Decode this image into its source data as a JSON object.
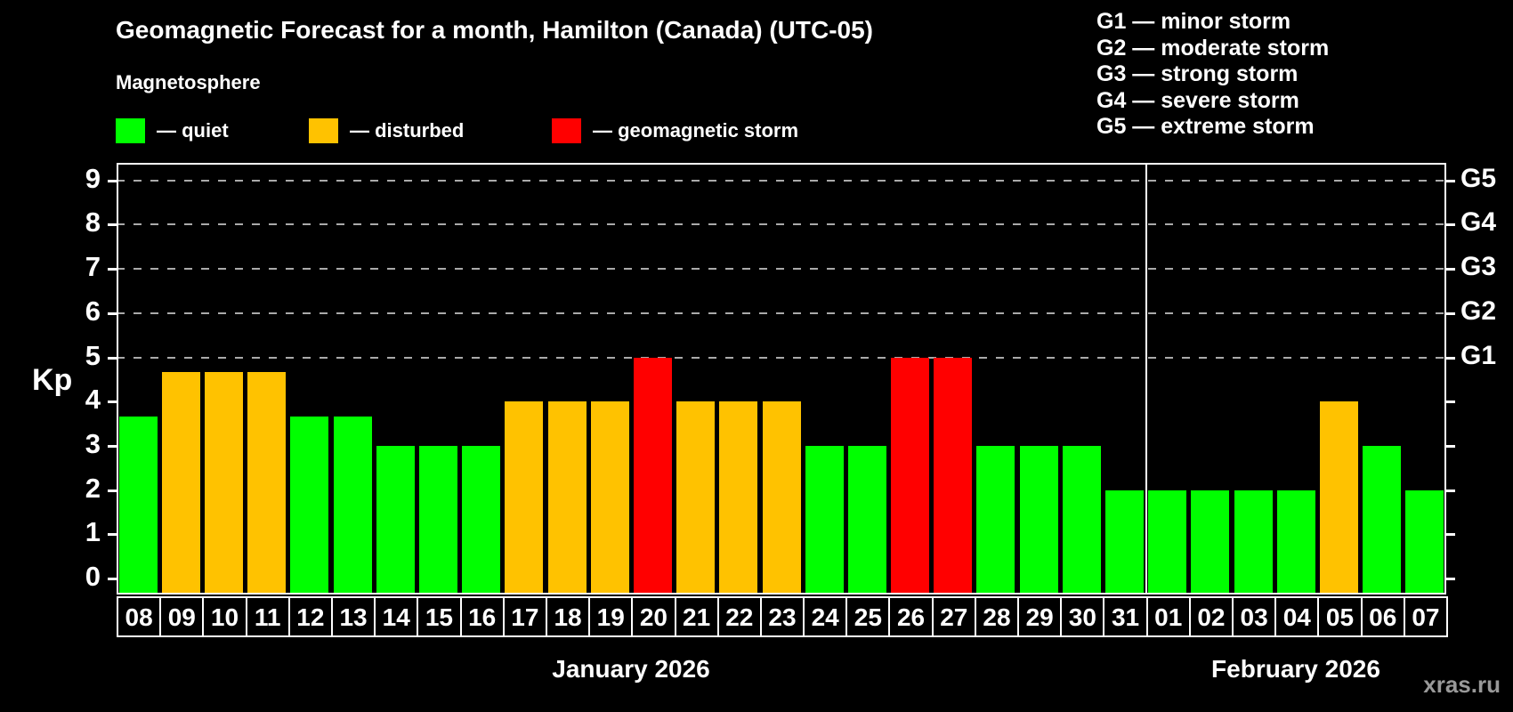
{
  "header": {
    "title": "Geomagnetic Forecast for a month, Hamilton (Canada) (UTC-05)",
    "subtitle": "Magnetosphere"
  },
  "legend": {
    "items": [
      {
        "key": "quiet",
        "label": "— quiet",
        "color": "#00ff00"
      },
      {
        "key": "disturbed",
        "label": "— disturbed",
        "color": "#ffc200"
      },
      {
        "key": "storm",
        "label": "— geomagnetic storm",
        "color": "#ff0000"
      }
    ]
  },
  "g_legend": {
    "items": [
      "G1 — minor storm",
      "G2 — moderate storm",
      "G3 — strong storm",
      "G4 — severe storm",
      "G5 — extreme storm"
    ]
  },
  "watermark": "xras.ru",
  "chart_data": {
    "type": "bar",
    "title": "Geomagnetic Forecast for a month, Hamilton (Canada) (UTC-05)",
    "ylabel": "Kp",
    "ylim": [
      -0.36,
      9.4
    ],
    "y_ticks": [
      0,
      1,
      2,
      3,
      4,
      5,
      6,
      7,
      8,
      9
    ],
    "gridlines_at": [
      5,
      6,
      7,
      8,
      9
    ],
    "grid": "dashed horizontal lines at Kp 5–9 only",
    "legend_position": "top-left",
    "right_axis_labels": [
      {
        "value": 5,
        "label": "G1"
      },
      {
        "value": 6,
        "label": "G2"
      },
      {
        "value": 7,
        "label": "G3"
      },
      {
        "value": 8,
        "label": "G4"
      },
      {
        "value": 9,
        "label": "G5"
      }
    ],
    "months": [
      {
        "label": "January 2026",
        "days": 24
      },
      {
        "label": "February 2026",
        "days": 7
      }
    ],
    "colors": {
      "quiet": "#00ff00",
      "disturbed": "#ffc200",
      "storm": "#ff0000"
    },
    "points": [
      {
        "day": "08",
        "kp": 3.67,
        "status": "quiet"
      },
      {
        "day": "09",
        "kp": 4.67,
        "status": "disturbed"
      },
      {
        "day": "10",
        "kp": 4.67,
        "status": "disturbed"
      },
      {
        "day": "11",
        "kp": 4.67,
        "status": "disturbed"
      },
      {
        "day": "12",
        "kp": 3.67,
        "status": "quiet"
      },
      {
        "day": "13",
        "kp": 3.67,
        "status": "quiet"
      },
      {
        "day": "14",
        "kp": 3,
        "status": "quiet"
      },
      {
        "day": "15",
        "kp": 3,
        "status": "quiet"
      },
      {
        "day": "16",
        "kp": 3,
        "status": "quiet"
      },
      {
        "day": "17",
        "kp": 4,
        "status": "disturbed"
      },
      {
        "day": "18",
        "kp": 4,
        "status": "disturbed"
      },
      {
        "day": "19",
        "kp": 4,
        "status": "disturbed"
      },
      {
        "day": "20",
        "kp": 5,
        "status": "storm"
      },
      {
        "day": "21",
        "kp": 4,
        "status": "disturbed"
      },
      {
        "day": "22",
        "kp": 4,
        "status": "disturbed"
      },
      {
        "day": "23",
        "kp": 4,
        "status": "disturbed"
      },
      {
        "day": "24",
        "kp": 3,
        "status": "quiet"
      },
      {
        "day": "25",
        "kp": 3,
        "status": "quiet"
      },
      {
        "day": "26",
        "kp": 5,
        "status": "storm"
      },
      {
        "day": "27",
        "kp": 5,
        "status": "storm"
      },
      {
        "day": "28",
        "kp": 3,
        "status": "quiet"
      },
      {
        "day": "29",
        "kp": 3,
        "status": "quiet"
      },
      {
        "day": "30",
        "kp": 3,
        "status": "quiet"
      },
      {
        "day": "31",
        "kp": 2,
        "status": "quiet"
      },
      {
        "day": "01",
        "kp": 2,
        "status": "quiet"
      },
      {
        "day": "02",
        "kp": 2,
        "status": "quiet"
      },
      {
        "day": "03",
        "kp": 2,
        "status": "quiet"
      },
      {
        "day": "04",
        "kp": 2,
        "status": "quiet"
      },
      {
        "day": "05",
        "kp": 4,
        "status": "disturbed"
      },
      {
        "day": "06",
        "kp": 3,
        "status": "quiet"
      },
      {
        "day": "07",
        "kp": 2,
        "status": "quiet"
      }
    ]
  }
}
